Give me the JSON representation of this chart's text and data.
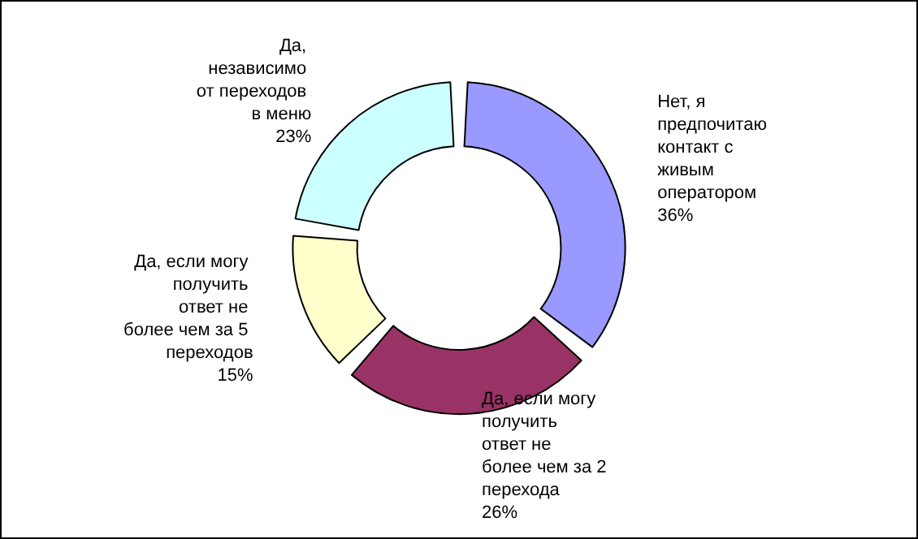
{
  "chart_data": {
    "type": "donut",
    "categories": [
      "Нет, я предпочитаю контакт с живым оператором",
      "Да, если могу получить ответ не более чем за 2 перехода",
      "Да, если могу получить ответ не более чем за 5 переходов",
      "Да, независимо от переходов в меню"
    ],
    "values": [
      36,
      26,
      15,
      23
    ],
    "colors": [
      "#9999ff",
      "#993366",
      "#ffffcc",
      "#ccffff"
    ],
    "value_labels": [
      "36%",
      "26%",
      "15%",
      "23%"
    ],
    "legend": false
  }
}
